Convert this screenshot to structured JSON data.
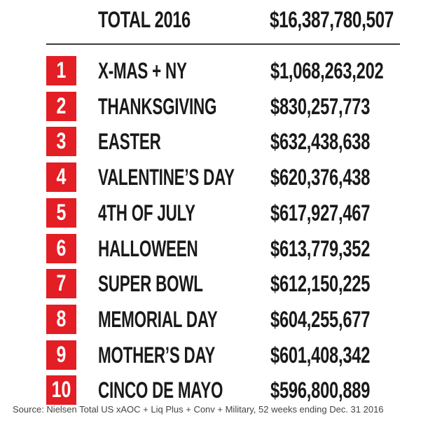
{
  "chart_data": {
    "type": "table",
    "total": {
      "label": "TOTAL 2016",
      "value": "$16,387,780,507"
    },
    "rows": [
      {
        "rank": "1",
        "holiday": "X-MAS + NY",
        "sales": "$1,068,263,202"
      },
      {
        "rank": "2",
        "holiday": "THANKSGIVING",
        "sales": "$830,257,773"
      },
      {
        "rank": "3",
        "holiday": "EASTER",
        "sales": "$632,438,638"
      },
      {
        "rank": "4",
        "holiday": "VALENTINE’S DAY",
        "sales": "$620,376,438"
      },
      {
        "rank": "5",
        "holiday": "4TH OF JULY",
        "sales": "$617,927,467"
      },
      {
        "rank": "6",
        "holiday": "HALLOWEEN",
        "sales": "$613,779,352"
      },
      {
        "rank": "7",
        "holiday": "SUPER BOWL",
        "sales": "$612,150,225"
      },
      {
        "rank": "8",
        "holiday": "MEMORIAL DAY",
        "sales": "$604,255,677"
      },
      {
        "rank": "9",
        "holiday": "MOTHER’S DAY",
        "sales": "$601,408,342"
      },
      {
        "rank": "10",
        "holiday": "CINCO DE MAYO",
        "sales": "$596,800,889"
      }
    ],
    "source": "Source: Nielsen Total US xAOC + Liq Plus + Conv + Military, 52 weeks ending Dec. 31 2016"
  },
  "colors": {
    "badge": "#e31e24",
    "text": "#1a1a1a",
    "divider": "#3a3a3a"
  }
}
